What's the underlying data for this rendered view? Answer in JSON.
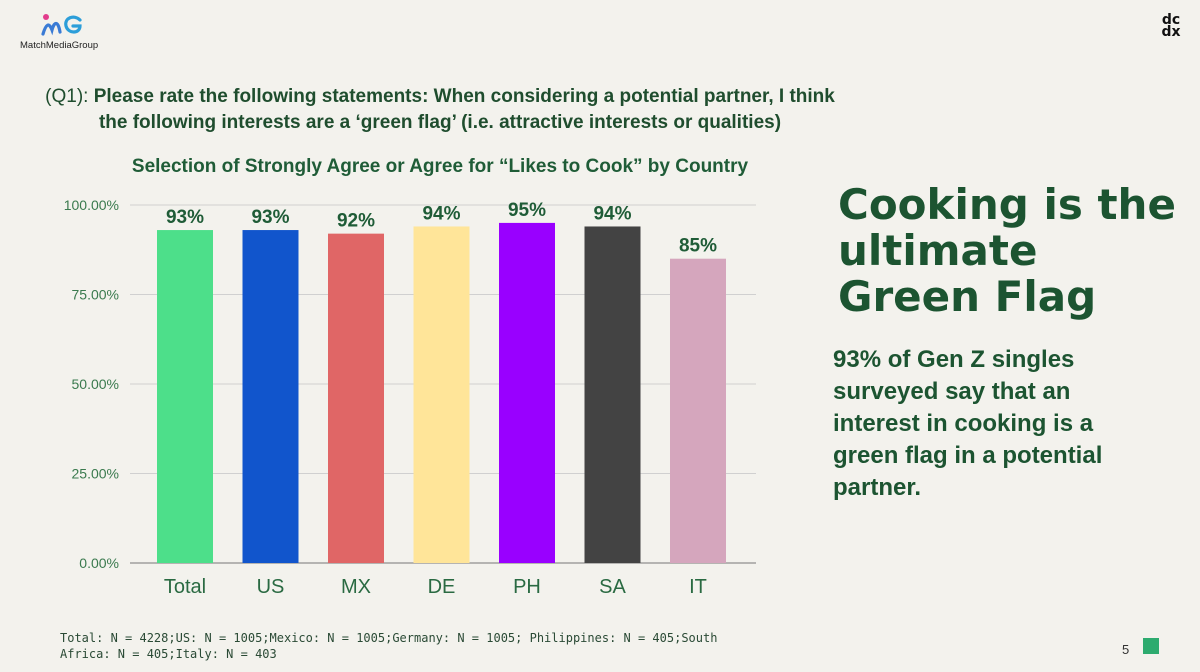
{
  "branding": {
    "left_logo_text": "MatchMediaGroup",
    "right_logo_text": "dcdx",
    "page_number": "5",
    "colors": {
      "accent_green": "#2dab6f",
      "headline_green": "#1c5431"
    }
  },
  "question": {
    "prefix": "(Q1):",
    "body": "Please rate the following statements: When considering a potential partner, I think the following interests are a ‘green flag’ (i.e. attractive interests or qualities)"
  },
  "headline": "Cooking is the ultimate Green Flag",
  "subtext": "93% of Gen Z singles surveyed say that an interest in cooking is a green flag in a potential partner.",
  "footnote": "Total: N = 4228;US: N = 1005;Mexico: N = 1005;Germany: N = 1005; Philippines: N = 405;South Africa: N = 405;Italy: N = 403",
  "chart_data": {
    "type": "bar",
    "title": "Selection of Strongly Agree or Agree for “Likes to Cook” by Country",
    "categories": [
      "Total",
      "US",
      "MX",
      "DE",
      "PH",
      "SA",
      "IT"
    ],
    "values": [
      93,
      93,
      92,
      94,
      95,
      94,
      85
    ],
    "data_labels": [
      "93%",
      "93%",
      "92%",
      "94%",
      "95%",
      "94%",
      "85%"
    ],
    "colors": [
      "#4ddf8a",
      "#1155cc",
      "#e06666",
      "#ffe599",
      "#9900ff",
      "#434343",
      "#d5a6bd"
    ],
    "ylim": [
      0,
      100
    ],
    "yticks": [
      0,
      25,
      50,
      75,
      100
    ],
    "ytick_labels": [
      "0.00%",
      "25.00%",
      "50.00%",
      "75.00%",
      "100.00%"
    ],
    "grid": true,
    "xlabel": "",
    "ylabel": ""
  }
}
